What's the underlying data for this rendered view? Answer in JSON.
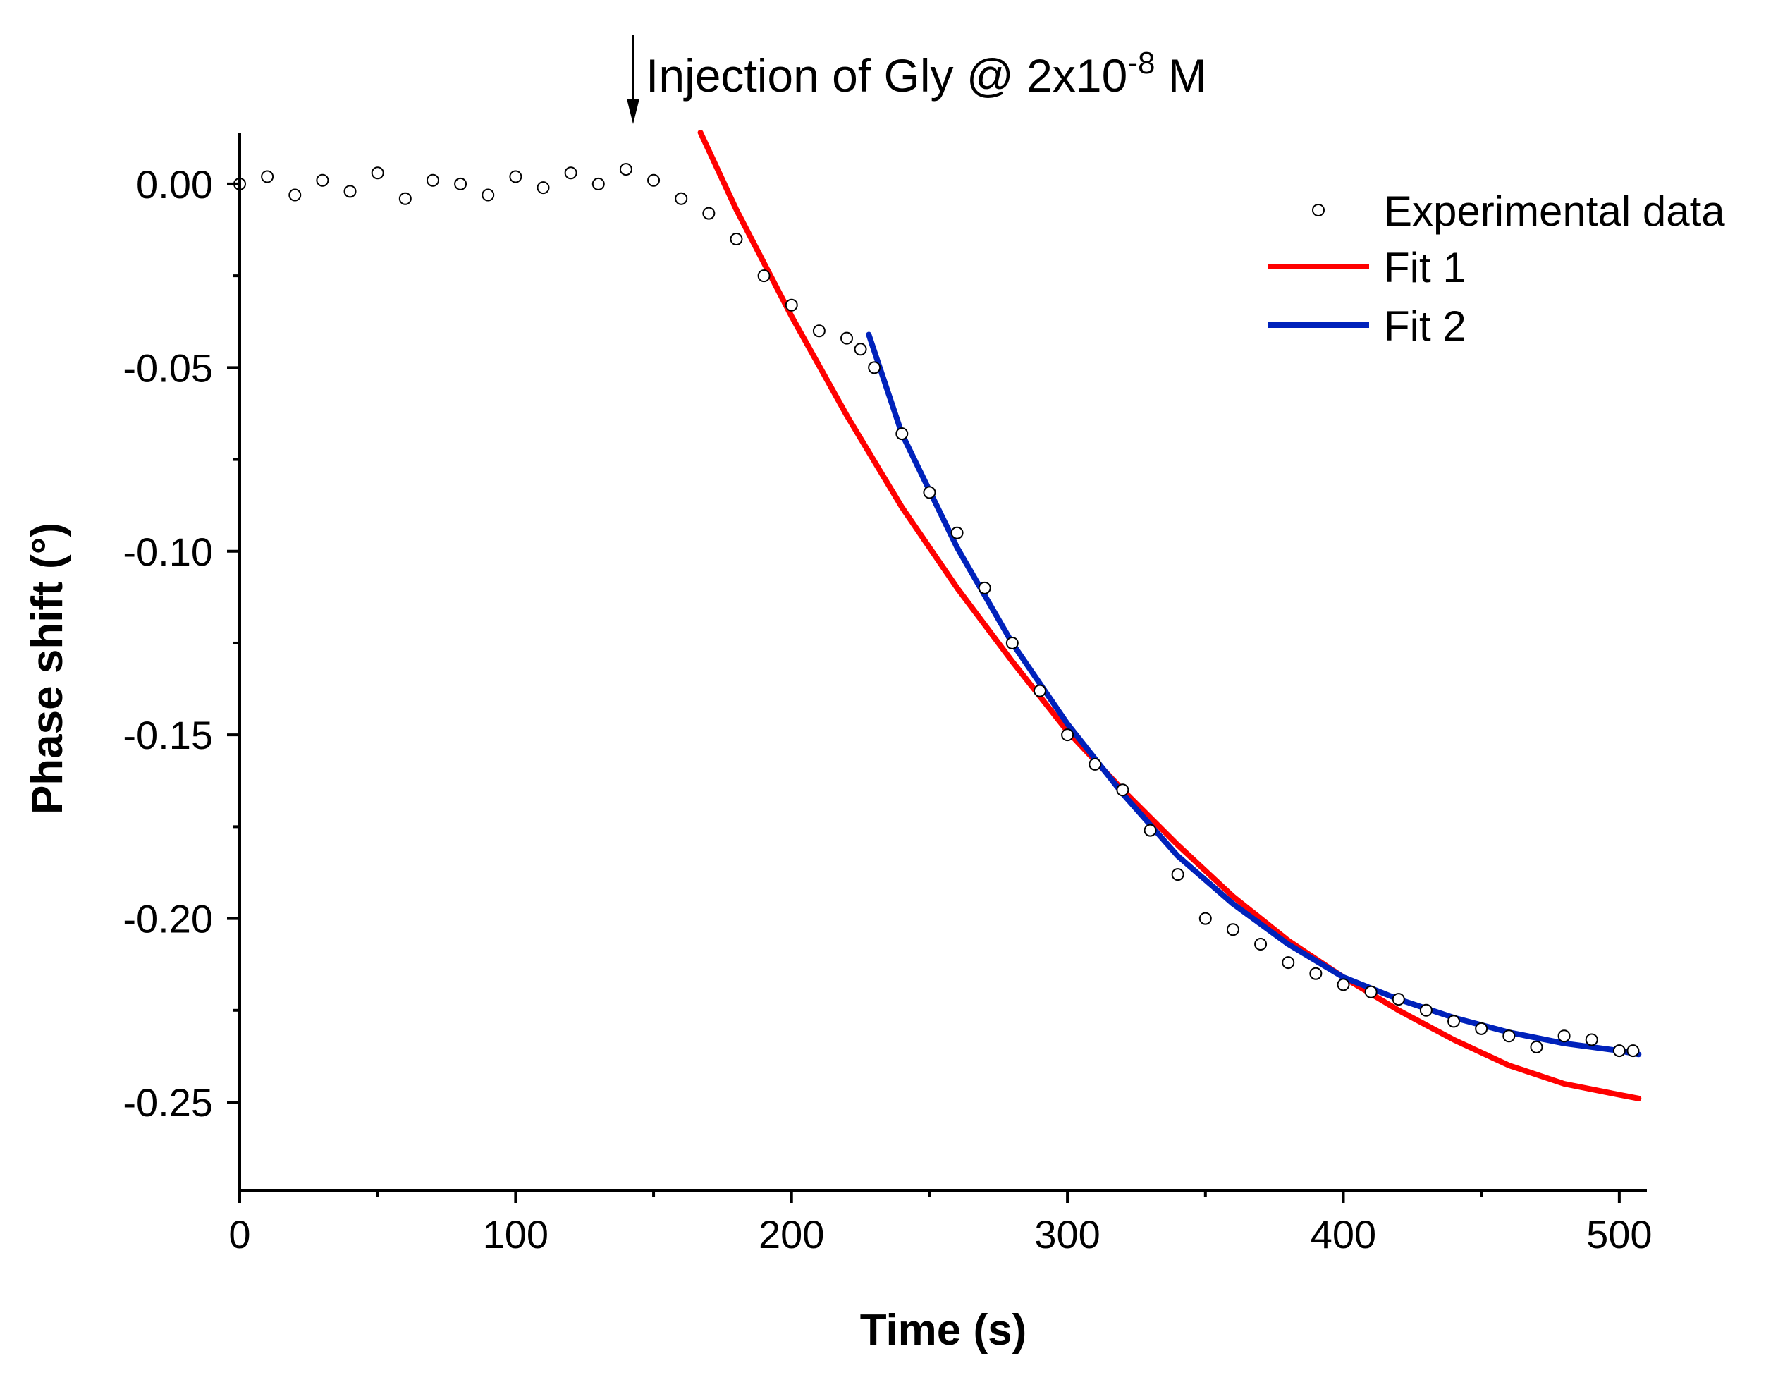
{
  "chart_data": {
    "type": "scatter",
    "title": "",
    "xlabel": "Time (s)",
    "ylabel": "Phase shift (°)",
    "xlim": [
      0,
      510
    ],
    "ylim": [
      -0.274,
      0.014
    ],
    "x_ticks": [
      0,
      100,
      200,
      300,
      400,
      500
    ],
    "x_tick_labels": [
      "0",
      "100",
      "200",
      "300",
      "400",
      "500"
    ],
    "y_ticks": [
      0.0,
      -0.05,
      -0.1,
      -0.15,
      -0.2,
      -0.25
    ],
    "y_tick_labels": [
      "0.00",
      "-0.05",
      "-0.10",
      "-0.15",
      "-0.20",
      "-0.25"
    ],
    "legend": {
      "position": "top-right",
      "entries": [
        {
          "label": "Experimental data",
          "marker": "open-circle",
          "color": "#000000"
        },
        {
          "label": "Fit 1",
          "marker": "line",
          "color": "#ff0000"
        },
        {
          "label": "Fit 2",
          "marker": "line",
          "color": "#0022bb"
        }
      ]
    },
    "annotation": {
      "text": "Injection of Gly @ 2x10",
      "superscript": "-8",
      "suffix": " M",
      "x": 143
    },
    "series": [
      {
        "name": "Experimental data",
        "kind": "scatter",
        "x": [
          0,
          10,
          20,
          30,
          40,
          50,
          60,
          70,
          80,
          90,
          100,
          110,
          120,
          130,
          140,
          150,
          160,
          170,
          180,
          190,
          200,
          210,
          220,
          225,
          230,
          240,
          250,
          260,
          270,
          280,
          290,
          300,
          310,
          320,
          330,
          340,
          350,
          360,
          370,
          380,
          390,
          400,
          410,
          420,
          430,
          440,
          450,
          460,
          470,
          480,
          490,
          500,
          505
        ],
        "y": [
          0.0,
          0.002,
          -0.003,
          0.001,
          -0.002,
          0.003,
          -0.004,
          0.001,
          0.0,
          -0.003,
          0.002,
          -0.001,
          0.003,
          0.0,
          0.004,
          0.001,
          -0.004,
          -0.008,
          -0.015,
          -0.025,
          -0.033,
          -0.04,
          -0.042,
          -0.045,
          -0.05,
          -0.068,
          -0.084,
          -0.095,
          -0.11,
          -0.125,
          -0.138,
          -0.15,
          -0.158,
          -0.165,
          -0.176,
          -0.188,
          -0.2,
          -0.203,
          -0.207,
          -0.212,
          -0.215,
          -0.218,
          -0.22,
          -0.222,
          -0.225,
          -0.228,
          -0.23,
          -0.232,
          -0.235,
          -0.232,
          -0.233,
          -0.236,
          -0.236
        ]
      },
      {
        "name": "Fit 1",
        "kind": "line",
        "color": "#ff0000",
        "x": [
          167,
          180,
          200,
          220,
          240,
          260,
          280,
          300,
          320,
          340,
          360,
          380,
          400,
          420,
          440,
          460,
          480,
          500,
          507
        ],
        "y": [
          0.014,
          -0.007,
          -0.036,
          -0.063,
          -0.088,
          -0.11,
          -0.13,
          -0.149,
          -0.165,
          -0.18,
          -0.194,
          -0.206,
          -0.216,
          -0.225,
          -0.233,
          -0.24,
          -0.245,
          -0.248,
          -0.249
        ]
      },
      {
        "name": "Fit 2",
        "kind": "line",
        "color": "#0022bb",
        "x": [
          228,
          240,
          260,
          280,
          300,
          320,
          340,
          360,
          380,
          400,
          420,
          440,
          460,
          480,
          500,
          507
        ],
        "y": [
          -0.041,
          -0.068,
          -0.099,
          -0.125,
          -0.147,
          -0.166,
          -0.183,
          -0.196,
          -0.207,
          -0.216,
          -0.222,
          -0.227,
          -0.231,
          -0.234,
          -0.236,
          -0.237
        ]
      }
    ]
  }
}
